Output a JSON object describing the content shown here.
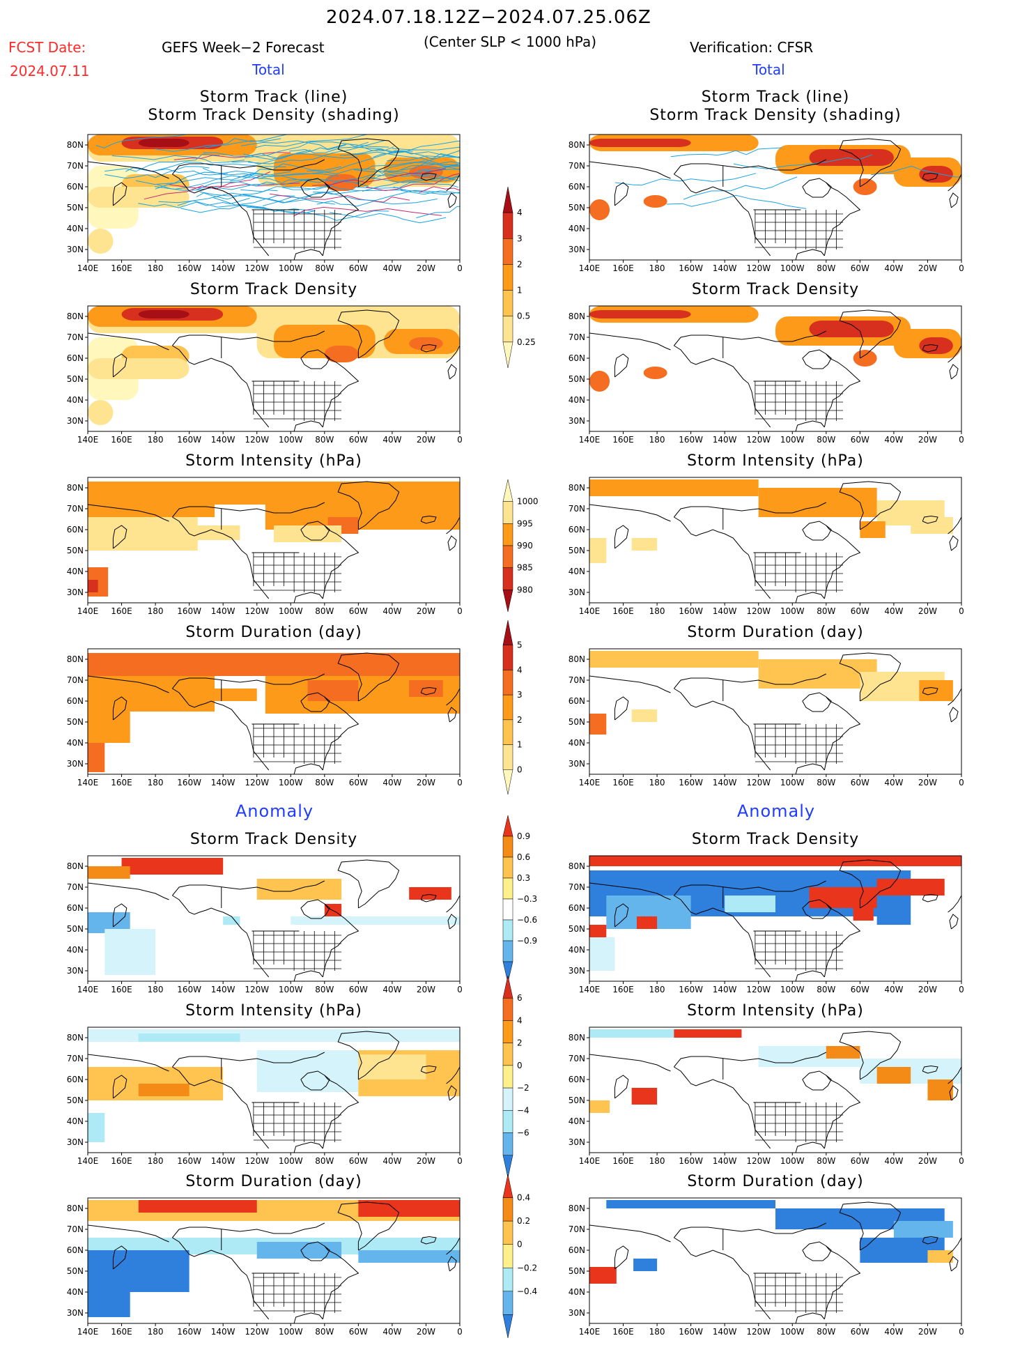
{
  "header": {
    "period": "2024.07.18.12Z−2024.07.25.06Z",
    "slp_note": "(Center SLP < 1000 hPa)",
    "fcst_label": "FCST Date:",
    "fcst_date": "2024.07.11",
    "left_model": "GEFS Week−2 Forecast",
    "right_model": "Verification: CFSR",
    "left_total": "Total",
    "right_total": "Total",
    "left_anomaly": "Anomaly",
    "right_anomaly": "Anomaly"
  },
  "lon_labels": [
    "140E",
    "160E",
    "180",
    "160W",
    "140W",
    "120W",
    "100W",
    "80W",
    "60W",
    "40W",
    "20W",
    "0"
  ],
  "lat_labels": [
    "80N",
    "70N",
    "60N",
    "50N",
    "40N",
    "30N"
  ],
  "panels": [
    {
      "col": "left",
      "row": 0,
      "title1": "Storm Track (line)",
      "title2": "Storm Track Density (shading)",
      "field": "density",
      "source": "fcst",
      "tracks": true
    },
    {
      "col": "right",
      "row": 0,
      "title1": "Storm Track (line)",
      "title2": "Storm Track Density (shading)",
      "field": "density",
      "source": "obs",
      "tracks": true
    },
    {
      "col": "left",
      "row": 1,
      "title1": "Storm Track Density",
      "field": "density",
      "source": "fcst"
    },
    {
      "col": "right",
      "row": 1,
      "title1": "Storm Track Density",
      "field": "density",
      "source": "obs"
    },
    {
      "col": "left",
      "row": 2,
      "title1": "Storm Intensity (hPa)",
      "field": "intensity",
      "source": "fcst"
    },
    {
      "col": "right",
      "row": 2,
      "title1": "Storm Intensity (hPa)",
      "field": "intensity",
      "source": "obs"
    },
    {
      "col": "left",
      "row": 3,
      "title1": "Storm Duration (day)",
      "field": "duration",
      "source": "fcst"
    },
    {
      "col": "right",
      "row": 3,
      "title1": "Storm Duration (day)",
      "field": "duration",
      "source": "obs"
    },
    {
      "col": "left",
      "row": 4,
      "title1": "Storm Track Density",
      "field": "anom_density",
      "source": "fcst"
    },
    {
      "col": "right",
      "row": 4,
      "title1": "Storm Track Density",
      "field": "anom_density",
      "source": "obs"
    },
    {
      "col": "left",
      "row": 5,
      "title1": "Storm Intensity (hPa)",
      "field": "anom_intensity",
      "source": "fcst"
    },
    {
      "col": "right",
      "row": 5,
      "title1": "Storm Intensity (hPa)",
      "field": "anom_intensity",
      "source": "obs"
    },
    {
      "col": "left",
      "row": 6,
      "title1": "Storm Duration (day)",
      "field": "anom_duration",
      "source": "fcst"
    },
    {
      "col": "right",
      "row": 6,
      "title1": "Storm Duration (day)",
      "field": "anom_duration",
      "source": "obs"
    }
  ],
  "colorbars": [
    {
      "name": "density",
      "labels": [
        "4",
        "3",
        "2",
        "1",
        "0.5",
        "0.25"
      ],
      "colors": [
        "#a50f15",
        "#d7301f",
        "#f46d20",
        "#fe9a1a",
        "#fec44f",
        "#fee391",
        "#fff7bc"
      ]
    },
    {
      "name": "intensity",
      "labels": [
        "1000",
        "995",
        "990",
        "985",
        "980"
      ],
      "colors": [
        "#fff7bc",
        "#fee391",
        "#fe9a1a",
        "#f46d20",
        "#d7301f",
        "#a50f15"
      ]
    },
    {
      "name": "duration",
      "labels": [
        "5",
        "4",
        "3",
        "2",
        "1",
        "0"
      ],
      "colors": [
        "#a50f15",
        "#d7301f",
        "#f46d20",
        "#fe9a1a",
        "#fec44f",
        "#fee391",
        "#fff7bc"
      ]
    },
    {
      "name": "anom_density",
      "labels": [
        "0.9",
        "0.6",
        "0.3",
        "−0.3",
        "−0.6",
        "−0.9"
      ],
      "colors": [
        "#e8351c",
        "#f48b16",
        "#fec44f",
        "#fff08a",
        "#ffffff",
        "#aeeaf5",
        "#64b5ec",
        "#2f7fdc"
      ]
    },
    {
      "name": "anom_intensity",
      "labels": [
        "6",
        "4",
        "2",
        "0",
        "−2",
        "−4",
        "−6"
      ],
      "colors": [
        "#d7301f",
        "#f46d20",
        "#fe9a1a",
        "#fec44f",
        "#fff08a",
        "#d4f3fa",
        "#aeeaf5",
        "#64b5ec",
        "#2f7fdc"
      ]
    },
    {
      "name": "anom_duration",
      "labels": [
        "0.4",
        "0.2",
        "0",
        "−0.2",
        "−0.4"
      ],
      "colors": [
        "#e8351c",
        "#f48b16",
        "#fec44f",
        "#fff08a",
        "#aeeaf5",
        "#64b5ec",
        "#2f7fdc"
      ]
    }
  ],
  "palettes": {
    "density": [
      "#fff7bc",
      "#fee391",
      "#fec44f",
      "#fe9a1a",
      "#f46d20",
      "#d7301f",
      "#a50f15"
    ],
    "intensity": [
      "#fee391",
      "#fe9a1a",
      "#f46d20",
      "#d7301f"
    ],
    "duration": [
      "#fee391",
      "#fec44f",
      "#fe9a1a",
      "#f46d20",
      "#d7301f"
    ],
    "anom_pos": [
      "#fee391",
      "#fec44f",
      "#f48b16",
      "#e8351c"
    ],
    "anom_neg": [
      "#d4f3fa",
      "#aeeaf5",
      "#64b5ec",
      "#2f7fdc"
    ],
    "track_line": "#1aa3e0",
    "track_line2": "#c8286e"
  }
}
